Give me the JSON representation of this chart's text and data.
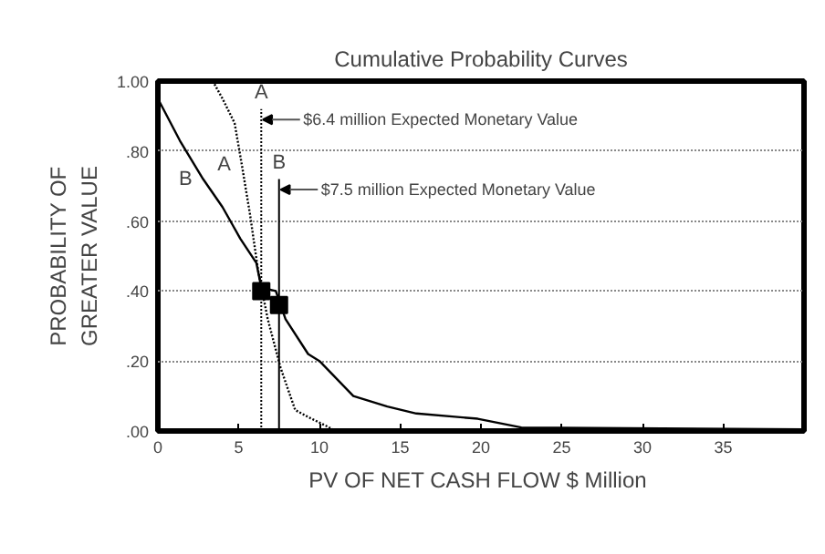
{
  "chart_data": {
    "type": "line",
    "title": "Cumulative Probability Curves",
    "xlabel": "PV OF NET CASH FLOW  $ Million",
    "ylabel": "PROBABILITY OF\nGREATER VALUE",
    "xlim": [
      0,
      40
    ],
    "ylim": [
      0,
      1
    ],
    "xticks": [
      0,
      5,
      10,
      15,
      20,
      25,
      30,
      35
    ],
    "yticks": [
      {
        "value": 0,
        "label": ".00"
      },
      {
        "value": 0.2,
        "label": ".20"
      },
      {
        "value": 0.4,
        "label": ".40"
      },
      {
        "value": 0.6,
        "label": ".60"
      },
      {
        "value": 0.8,
        "label": ".80"
      },
      {
        "value": 1,
        "label": "1.00"
      }
    ],
    "grid": "y",
    "series": [
      {
        "name": "A",
        "color": "#000000",
        "line_style": "dotted",
        "x": [
          0,
          3.4,
          4.0,
          4.75,
          5.2,
          5.7,
          6.2,
          6.8,
          7.6,
          8.5,
          9.3,
          10.4,
          11.0,
          13.8
        ],
        "values": [
          1.0,
          1.0,
          0.95,
          0.88,
          0.76,
          0.62,
          0.46,
          0.32,
          0.18,
          0.06,
          0.04,
          0.015,
          0.0,
          0.0
        ]
      },
      {
        "name": "B",
        "color": "#000000",
        "line_style": "solid",
        "x": [
          0,
          1.36,
          2.8,
          4.0,
          5.1,
          6.1,
          6.4,
          7.3,
          7.9,
          9.3,
          10.0,
          12.1,
          14.2,
          16.0,
          19.8,
          22.5,
          40
        ],
        "values": [
          0.95,
          0.83,
          0.72,
          0.64,
          0.55,
          0.48,
          0.41,
          0.4,
          0.32,
          0.22,
          0.2,
          0.1,
          0.07,
          0.05,
          0.035,
          0.01,
          0.005
        ]
      },
      {
        "type": "scatter",
        "marker": "square",
        "color": "#000000",
        "x": [
          6.4,
          7.5
        ],
        "values": [
          0.4,
          0.36
        ]
      }
    ],
    "ref_lines": [
      {
        "axis": "x",
        "value": 6.4,
        "label": "A",
        "line_style": "dotted",
        "color": "#000000"
      },
      {
        "axis": "x",
        "value": 7.5,
        "label": "B",
        "line_style": "solid",
        "color": "#000000"
      }
    ],
    "annotations": [
      {
        "text": "$6.4 million Expected Monetary Value",
        "x": 6.4,
        "y": 0.92
      },
      {
        "text": "$7.5 million Expected Monetary Value",
        "x": 7.5,
        "y": 0.72
      }
    ]
  }
}
